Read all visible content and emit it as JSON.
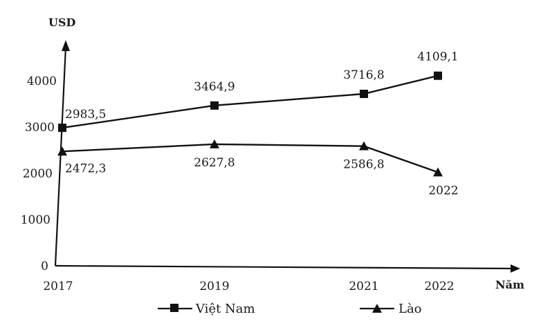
{
  "chart_data": {
    "type": "line",
    "ylabel": "USD",
    "xlabel": "Năm",
    "x_ticks": [
      "2017",
      "2019",
      "2021",
      "2022"
    ],
    "y_ticks": [
      "0",
      "1000",
      "2000",
      "3000",
      "4000"
    ],
    "ylim": [
      0,
      4000
    ],
    "grid": false,
    "legend_position": "bottom",
    "series": [
      {
        "name": "Việt Nam",
        "marker": "square",
        "x": [
          2017,
          2019,
          2021,
          2022
        ],
        "values": [
          2983.5,
          3464.9,
          3716.8,
          4109.1
        ],
        "labels": [
          "2983,5",
          "3464,9",
          "3716,8",
          "4109,1"
        ]
      },
      {
        "name": "Lào",
        "marker": "triangle",
        "x": [
          2017,
          2019,
          2021,
          2022
        ],
        "values": [
          2472.3,
          2627.8,
          2586.8,
          2022
        ],
        "labels": [
          "2472,3",
          "2627,8",
          "2586,8",
          "2022"
        ]
      }
    ]
  }
}
